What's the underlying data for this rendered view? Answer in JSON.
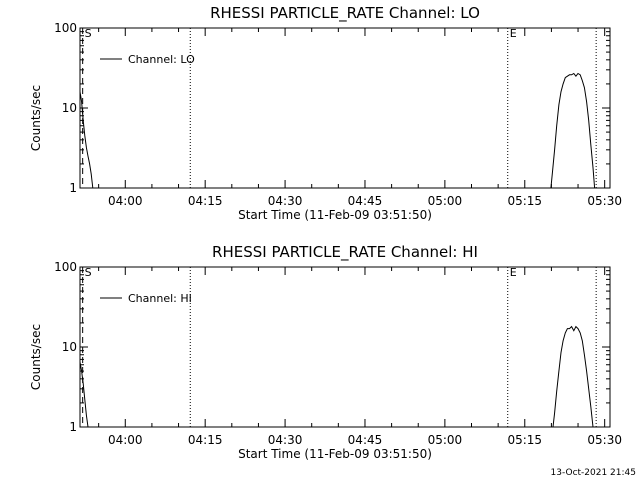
{
  "footer_timestamp": "13-Oct-2021 21:45",
  "chart_data": [
    {
      "type": "line",
      "title": "RHESSI PARTICLE_RATE Channel: LO",
      "xlabel": "Start Time (11-Feb-09 03:51:50)",
      "ylabel": "Counts/sec",
      "y_scale": "log",
      "ylim": [
        1,
        100
      ],
      "xlim_minutes": [
        231.5,
        331.0
      ],
      "x_ticks": [
        {
          "minute": 240,
          "label": "04:00"
        },
        {
          "minute": 255,
          "label": "04:15"
        },
        {
          "minute": 270,
          "label": "04:30"
        },
        {
          "minute": 285,
          "label": "04:45"
        },
        {
          "minute": 300,
          "label": "05:00"
        },
        {
          "minute": 315,
          "label": "05:15"
        },
        {
          "minute": 330,
          "label": "05:30"
        }
      ],
      "y_ticks": [
        {
          "value": 1,
          "label": "1"
        },
        {
          "value": 10,
          "label": "10"
        },
        {
          "value": 100,
          "label": "100"
        }
      ],
      "grid": false,
      "legend": {
        "placement": "top-left",
        "entries": [
          "Channel: LO"
        ]
      },
      "markers": [
        {
          "minute": 232.0,
          "label": "S",
          "style": "dashed"
        },
        {
          "minute": 252.2,
          "label": "",
          "style": "dotted"
        },
        {
          "minute": 311.8,
          "label": "E",
          "style": "dotted"
        },
        {
          "minute": 328.4,
          "label": "",
          "style": "dotted"
        }
      ],
      "series": [
        {
          "name": "Channel: LO",
          "segments": [
            {
              "x": [
                231.5,
                231.8,
                232.1,
                232.4,
                232.7,
                233.0,
                233.3,
                233.6,
                233.9
              ],
              "y": [
                16,
                12,
                7,
                4.5,
                3.2,
                2.5,
                2.0,
                1.5,
                1.0
              ]
            },
            {
              "x": [
                319.9,
                320.2,
                320.6,
                321.0,
                321.4,
                321.8,
                322.2,
                322.6,
                323.0,
                323.4,
                323.8,
                324.2,
                324.6,
                325.0,
                325.4,
                325.8,
                326.2,
                326.6,
                327.0,
                327.4,
                327.8,
                328.1
              ],
              "y": [
                1.0,
                1.6,
                3.0,
                6.0,
                11,
                16,
                20,
                24,
                25,
                26,
                26,
                27,
                25,
                27,
                26,
                22,
                18,
                12,
                7,
                3.5,
                1.8,
                1.0
              ]
            }
          ]
        }
      ]
    },
    {
      "type": "line",
      "title": "RHESSI PARTICLE_RATE Channel: HI",
      "xlabel": "Start Time (11-Feb-09 03:51:50)",
      "ylabel": "Counts/sec",
      "y_scale": "log",
      "ylim": [
        1,
        100
      ],
      "xlim_minutes": [
        231.5,
        331.0
      ],
      "x_ticks": [
        {
          "minute": 240,
          "label": "04:00"
        },
        {
          "minute": 255,
          "label": "04:15"
        },
        {
          "minute": 270,
          "label": "04:30"
        },
        {
          "minute": 285,
          "label": "04:45"
        },
        {
          "minute": 300,
          "label": "05:00"
        },
        {
          "minute": 315,
          "label": "05:15"
        },
        {
          "minute": 330,
          "label": "05:30"
        }
      ],
      "y_ticks": [
        {
          "value": 1,
          "label": "1"
        },
        {
          "value": 10,
          "label": "10"
        },
        {
          "value": 100,
          "label": "100"
        }
      ],
      "grid": false,
      "legend": {
        "placement": "top-left",
        "entries": [
          "Channel: HI"
        ]
      },
      "markers": [
        {
          "minute": 232.0,
          "label": "S",
          "style": "dashed"
        },
        {
          "minute": 252.2,
          "label": "",
          "style": "dotted"
        },
        {
          "minute": 311.8,
          "label": "E",
          "style": "dotted"
        },
        {
          "minute": 328.4,
          "label": "",
          "style": "dotted"
        }
      ],
      "series": [
        {
          "name": "Channel: HI",
          "segments": [
            {
              "x": [
                231.5,
                231.8,
                232.1,
                232.4,
                232.7,
                233.0
              ],
              "y": [
                6.5,
                5.0,
                3.5,
                2.2,
                1.4,
                1.0
              ]
            },
            {
              "x": [
                320.3,
                320.6,
                321.0,
                321.4,
                321.8,
                322.2,
                322.6,
                323.0,
                323.4,
                323.8,
                324.2,
                324.6,
                325.0,
                325.4,
                325.8,
                326.2,
                326.6,
                327.0,
                327.4,
                327.8
              ],
              "y": [
                1.0,
                1.5,
                2.8,
                5.0,
                8.5,
                12,
                15,
                17,
                17,
                18,
                16,
                18,
                17,
                15,
                12,
                8,
                5,
                3,
                1.8,
                1.0
              ]
            }
          ]
        }
      ]
    }
  ]
}
